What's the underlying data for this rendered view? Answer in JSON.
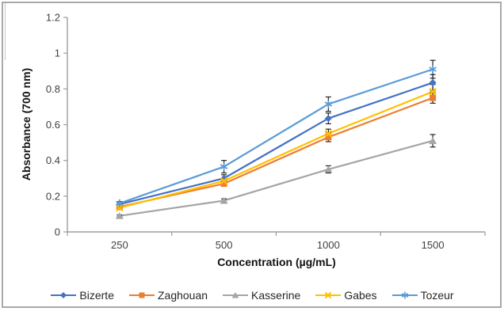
{
  "chart_data": {
    "type": "line",
    "title": "",
    "categories": [
      "250",
      "500",
      "1000",
      "1500"
    ],
    "xlabel": "Concentration (µg/mL)",
    "ylabel": "Absorbance (700 nm)",
    "ylim": [
      0,
      1.2
    ],
    "ytick_step": 0.2,
    "ytick_labels": [
      "0",
      "0.2",
      "0.4",
      "0.6",
      "0.8",
      "1",
      "1.2"
    ],
    "grid": false,
    "legend_position": "bottom",
    "error_bars": true,
    "series": [
      {
        "name": "Bizerte",
        "color": "#4472C4",
        "marker": "diamond",
        "values": [
          0.155,
          0.3,
          0.635,
          0.835
        ],
        "errors": [
          0.01,
          0.02,
          0.03,
          0.045
        ]
      },
      {
        "name": "Zaghouan",
        "color": "#ED7D31",
        "marker": "square",
        "values": [
          0.14,
          0.27,
          0.53,
          0.75
        ],
        "errors": [
          0.01,
          0.01,
          0.025,
          0.03
        ]
      },
      {
        "name": "Kasserine",
        "color": "#A5A5A5",
        "marker": "triangle",
        "values": [
          0.09,
          0.175,
          0.35,
          0.51
        ],
        "errors": [
          0.005,
          0.01,
          0.02,
          0.035
        ]
      },
      {
        "name": "Gabes",
        "color": "#FFC000",
        "marker": "x",
        "values": [
          0.135,
          0.285,
          0.55,
          0.785
        ],
        "errors": [
          0.01,
          0.01,
          0.025,
          0.04
        ]
      },
      {
        "name": "Tozeur",
        "color": "#5B9BD5",
        "marker": "asterisk",
        "values": [
          0.16,
          0.365,
          0.715,
          0.91
        ],
        "errors": [
          0.01,
          0.035,
          0.04,
          0.05
        ]
      }
    ],
    "colors": {
      "axis_line": "#9d9d9d",
      "tick_text": "#404040",
      "title_text": "#111111",
      "error_bar": "#262626",
      "frame_border": "#a9a9a9",
      "background": "#ffffff"
    }
  }
}
